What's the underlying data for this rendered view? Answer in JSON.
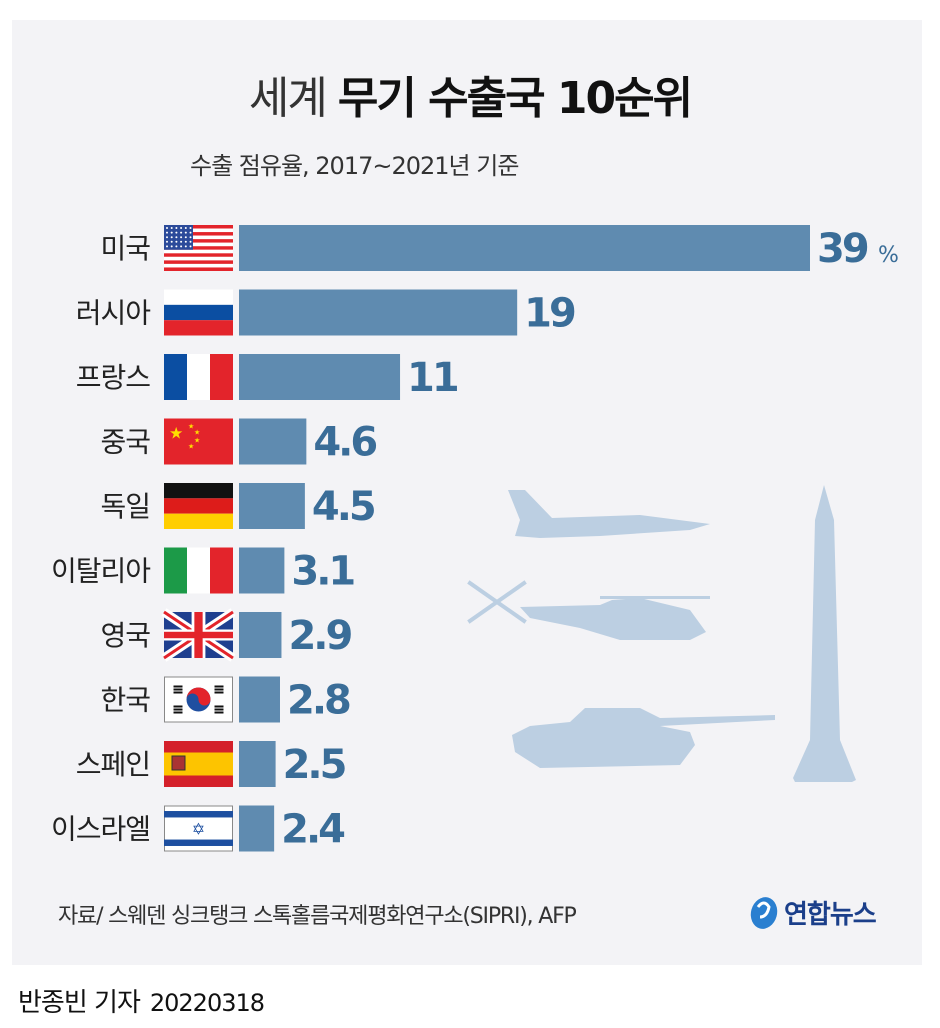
{
  "title": {
    "light": "세계",
    "bold": "무기 수출국 10순위"
  },
  "subtitle": "수출 점유율, 2017~2021년 기준",
  "chart_data": {
    "type": "bar",
    "orientation": "horizontal",
    "title": "세계 무기 수출국 10순위",
    "subtitle": "수출 점유율, 2017~2021년 기준",
    "unit": "%",
    "categories": [
      "미국",
      "러시아",
      "프랑스",
      "중국",
      "독일",
      "이탈리아",
      "영국",
      "한국",
      "스페인",
      "이스라엘"
    ],
    "values": [
      39,
      19,
      11,
      4.6,
      4.5,
      3.1,
      2.9,
      2.8,
      2.5,
      2.4
    ],
    "value_labels": [
      "39",
      "19",
      "11",
      "4.6",
      "4.5",
      "3.1",
      "2.9",
      "2.8",
      "2.5",
      "2.4"
    ],
    "flags": [
      "us-flag-icon",
      "russia-flag-icon",
      "france-flag-icon",
      "china-flag-icon",
      "germany-flag-icon",
      "italy-flag-icon",
      "uk-flag-icon",
      "korea-flag-icon",
      "spain-flag-icon",
      "israel-flag-icon"
    ],
    "xlim": [
      0,
      39
    ],
    "grid": false,
    "colors": {
      "bar": "#5f8bb0",
      "value_label": "#3a6d98",
      "silhouette": "#bccfe2",
      "background": "#f3f3f6"
    }
  },
  "decorations": [
    "fighter-jet-icon",
    "helicopter-icon",
    "tank-icon",
    "missile-icon"
  ],
  "source": "자료/ 스웨덴 싱크탱크 스톡홀름국제평화연구소(SIPRI), AFP",
  "logo": "연합뉴스",
  "byline": {
    "author": "반종빈 기자",
    "date": "20220318"
  }
}
